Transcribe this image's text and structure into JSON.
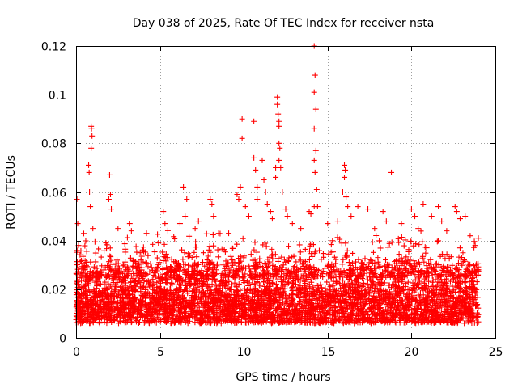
{
  "chart_data": {
    "type": "scatter",
    "title": "Day 038 of 2025, Rate Of TEC Index for receiver nsta",
    "xlabel": "GPS time / hours",
    "ylabel": "ROTI / TECUs",
    "xlim": [
      0,
      25
    ],
    "ylim": [
      0,
      0.12
    ],
    "x_ticks": [
      0,
      5,
      10,
      15,
      20,
      25
    ],
    "x_tick_labels": [
      "0",
      "5",
      "10",
      "15",
      "20",
      "25"
    ],
    "y_ticks": [
      0,
      0.02,
      0.04,
      0.06,
      0.08,
      0.1,
      0.12
    ],
    "y_tick_labels": [
      "0",
      "0.02",
      "0.04",
      "0.06",
      "0.08",
      "0.1",
      "0.12"
    ],
    "grid": true,
    "marker": "plus",
    "point_color": "#ff0000",
    "series": [
      {
        "name": "ROTI",
        "dense_band": {
          "x_range": [
            0,
            24
          ],
          "y_range": [
            0.002,
            0.03
          ],
          "note": "continuous dense band of points over the whole day"
        },
        "points": [
          {
            "x": 0.05,
            "y": 0.057
          },
          {
            "x": 0.1,
            "y": 0.047
          },
          {
            "x": 0.15,
            "y": 0.038
          },
          {
            "x": 0.9,
            "y": 0.087
          },
          {
            "x": 0.92,
            "y": 0.086
          },
          {
            "x": 0.95,
            "y": 0.083
          },
          {
            "x": 0.9,
            "y": 0.078
          },
          {
            "x": 0.75,
            "y": 0.071
          },
          {
            "x": 0.78,
            "y": 0.068
          },
          {
            "x": 0.8,
            "y": 0.06
          },
          {
            "x": 0.85,
            "y": 0.054
          },
          {
            "x": 1.0,
            "y": 0.045
          },
          {
            "x": 2.0,
            "y": 0.067
          },
          {
            "x": 2.05,
            "y": 0.059
          },
          {
            "x": 1.95,
            "y": 0.057
          },
          {
            "x": 2.1,
            "y": 0.053
          },
          {
            "x": 2.5,
            "y": 0.045
          },
          {
            "x": 3.2,
            "y": 0.047
          },
          {
            "x": 3.3,
            "y": 0.044
          },
          {
            "x": 4.2,
            "y": 0.043
          },
          {
            "x": 5.2,
            "y": 0.052
          },
          {
            "x": 5.3,
            "y": 0.047
          },
          {
            "x": 6.4,
            "y": 0.062
          },
          {
            "x": 6.6,
            "y": 0.057
          },
          {
            "x": 6.5,
            "y": 0.05
          },
          {
            "x": 6.2,
            "y": 0.047
          },
          {
            "x": 7.1,
            "y": 0.045
          },
          {
            "x": 7.3,
            "y": 0.048
          },
          {
            "x": 8.0,
            "y": 0.057
          },
          {
            "x": 8.1,
            "y": 0.055
          },
          {
            "x": 8.2,
            "y": 0.05
          },
          {
            "x": 8.5,
            "y": 0.043
          },
          {
            "x": 9.1,
            "y": 0.043
          },
          {
            "x": 9.6,
            "y": 0.059
          },
          {
            "x": 9.7,
            "y": 0.057
          },
          {
            "x": 9.8,
            "y": 0.062
          },
          {
            "x": 9.9,
            "y": 0.09
          },
          {
            "x": 9.9,
            "y": 0.082
          },
          {
            "x": 10.1,
            "y": 0.054
          },
          {
            "x": 10.3,
            "y": 0.05
          },
          {
            "x": 10.6,
            "y": 0.089
          },
          {
            "x": 10.6,
            "y": 0.074
          },
          {
            "x": 10.7,
            "y": 0.069
          },
          {
            "x": 10.8,
            "y": 0.062
          },
          {
            "x": 10.8,
            "y": 0.057
          },
          {
            "x": 11.1,
            "y": 0.073
          },
          {
            "x": 11.2,
            "y": 0.065
          },
          {
            "x": 11.3,
            "y": 0.06
          },
          {
            "x": 11.4,
            "y": 0.055
          },
          {
            "x": 11.6,
            "y": 0.052
          },
          {
            "x": 11.7,
            "y": 0.049
          },
          {
            "x": 11.9,
            "y": 0.07
          },
          {
            "x": 11.9,
            "y": 0.066
          },
          {
            "x": 12.0,
            "y": 0.099
          },
          {
            "x": 12.0,
            "y": 0.096
          },
          {
            "x": 12.05,
            "y": 0.092
          },
          {
            "x": 12.1,
            "y": 0.089
          },
          {
            "x": 12.1,
            "y": 0.087
          },
          {
            "x": 12.1,
            "y": 0.08
          },
          {
            "x": 12.15,
            "y": 0.078
          },
          {
            "x": 12.1,
            "y": 0.073
          },
          {
            "x": 12.2,
            "y": 0.07
          },
          {
            "x": 12.3,
            "y": 0.06
          },
          {
            "x": 12.5,
            "y": 0.053
          },
          {
            "x": 12.6,
            "y": 0.05
          },
          {
            "x": 12.9,
            "y": 0.047
          },
          {
            "x": 13.4,
            "y": 0.045
          },
          {
            "x": 13.9,
            "y": 0.052
          },
          {
            "x": 14.0,
            "y": 0.051
          },
          {
            "x": 14.2,
            "y": 0.12
          },
          {
            "x": 14.25,
            "y": 0.108
          },
          {
            "x": 14.2,
            "y": 0.101
          },
          {
            "x": 14.3,
            "y": 0.094
          },
          {
            "x": 14.2,
            "y": 0.086
          },
          {
            "x": 14.3,
            "y": 0.077
          },
          {
            "x": 14.2,
            "y": 0.073
          },
          {
            "x": 14.25,
            "y": 0.068
          },
          {
            "x": 14.35,
            "y": 0.061
          },
          {
            "x": 14.2,
            "y": 0.054
          },
          {
            "x": 14.4,
            "y": 0.054
          },
          {
            "x": 15.0,
            "y": 0.047
          },
          {
            "x": 15.6,
            "y": 0.048
          },
          {
            "x": 16.0,
            "y": 0.071
          },
          {
            "x": 16.05,
            "y": 0.069
          },
          {
            "x": 16.0,
            "y": 0.066
          },
          {
            "x": 15.9,
            "y": 0.06
          },
          {
            "x": 16.1,
            "y": 0.058
          },
          {
            "x": 16.2,
            "y": 0.054
          },
          {
            "x": 16.4,
            "y": 0.05
          },
          {
            "x": 16.8,
            "y": 0.054
          },
          {
            "x": 17.4,
            "y": 0.053
          },
          {
            "x": 17.8,
            "y": 0.045
          },
          {
            "x": 18.3,
            "y": 0.052
          },
          {
            "x": 18.5,
            "y": 0.048
          },
          {
            "x": 18.8,
            "y": 0.068
          },
          {
            "x": 19.4,
            "y": 0.047
          },
          {
            "x": 20.0,
            "y": 0.053
          },
          {
            "x": 20.2,
            "y": 0.05
          },
          {
            "x": 20.4,
            "y": 0.045
          },
          {
            "x": 20.7,
            "y": 0.055
          },
          {
            "x": 21.2,
            "y": 0.05
          },
          {
            "x": 21.6,
            "y": 0.054
          },
          {
            "x": 21.8,
            "y": 0.048
          },
          {
            "x": 22.1,
            "y": 0.044
          },
          {
            "x": 22.6,
            "y": 0.054
          },
          {
            "x": 22.7,
            "y": 0.052
          },
          {
            "x": 22.9,
            "y": 0.049
          },
          {
            "x": 23.2,
            "y": 0.05
          },
          {
            "x": 23.5,
            "y": 0.042
          },
          {
            "x": 23.8,
            "y": 0.038
          }
        ]
      }
    ]
  }
}
